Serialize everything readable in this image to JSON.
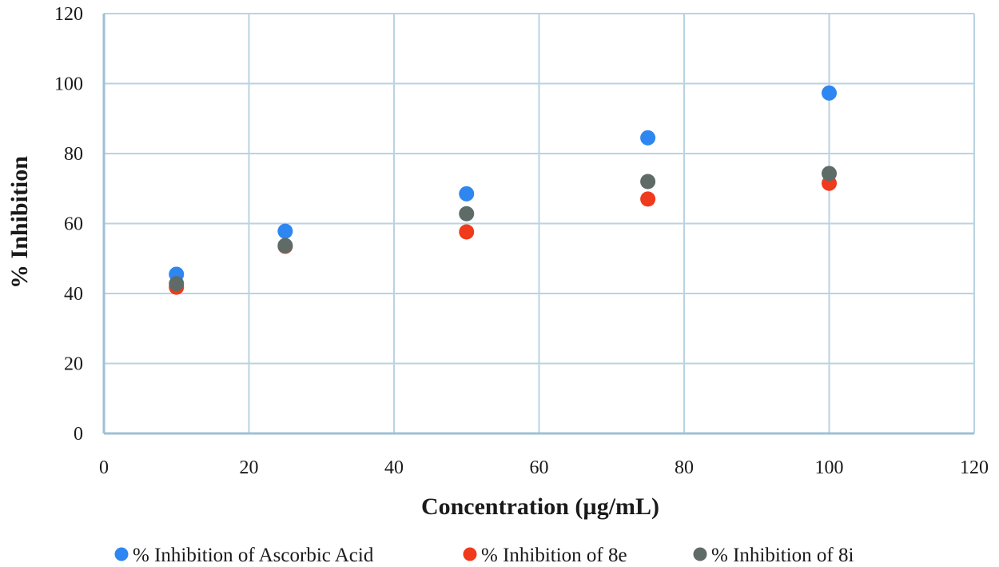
{
  "chart_data": {
    "type": "scatter",
    "title": "",
    "xlabel": "Concentration (µg/mL)",
    "ylabel": "% Inhibition",
    "xlim": [
      0,
      120
    ],
    "ylim": [
      0,
      120
    ],
    "xticks": [
      0,
      20,
      40,
      60,
      80,
      100,
      120
    ],
    "yticks": [
      0,
      20,
      40,
      60,
      80,
      100,
      120
    ],
    "grid": true,
    "legend_position": "bottom",
    "series": [
      {
        "name": "% Inhibition of Ascorbic Acid",
        "color": "#2e86f0",
        "points": [
          [
            10,
            45.5
          ],
          [
            25,
            57.8
          ],
          [
            50,
            68.5
          ],
          [
            75,
            84.5
          ],
          [
            100,
            97.3
          ]
        ]
      },
      {
        "name": "% Inhibition of 8e",
        "color": "#f03a1c",
        "points": [
          [
            10,
            41.8
          ],
          [
            25,
            53.5
          ],
          [
            50,
            57.6
          ],
          [
            75,
            67
          ],
          [
            100,
            71.5
          ]
        ]
      },
      {
        "name": "% Inhibition of 8i",
        "color": "#5f6b66",
        "points": [
          [
            10,
            42.8
          ],
          [
            25,
            53.7
          ],
          [
            50,
            62.8
          ],
          [
            75,
            72
          ],
          [
            100,
            74.3
          ]
        ]
      }
    ]
  }
}
